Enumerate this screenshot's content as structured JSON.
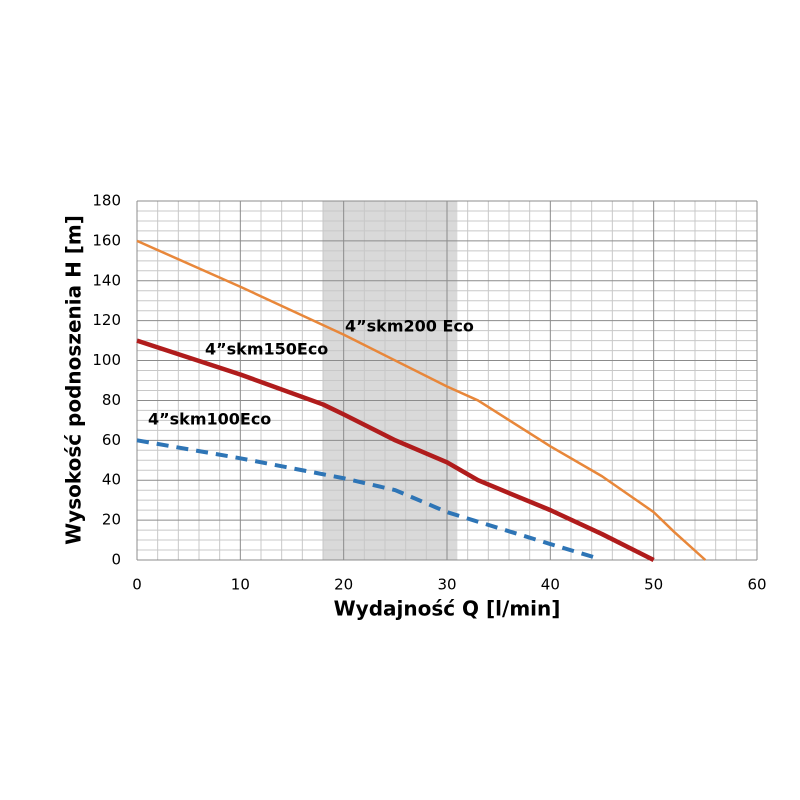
{
  "chart_data": {
    "type": "line",
    "xlabel": "Wydajność Q [l/min]",
    "ylabel": "Wysokość podnoszenia H [m]",
    "xlim": [
      0,
      60
    ],
    "xticks": [
      0,
      10,
      20,
      30,
      40,
      50,
      60
    ],
    "ylim": [
      0,
      180
    ],
    "yticks": [
      0,
      20,
      40,
      60,
      80,
      100,
      120,
      140,
      160,
      180
    ],
    "grid": true,
    "shaded_range": [
      18,
      31
    ],
    "series": [
      {
        "name": "4”skm200 Eco",
        "color": "#e8873a",
        "dashed": false,
        "x": [
          0,
          10,
          20,
          30,
          33,
          40,
          45,
          50,
          52,
          55
        ],
        "values": [
          160,
          137,
          113,
          87,
          80,
          57,
          42,
          24,
          14,
          0
        ]
      },
      {
        "name": "4”skm150Eco",
        "color": "#b01c1c",
        "dashed": false,
        "x": [
          0,
          10,
          18,
          20,
          25,
          30,
          33,
          40,
          45,
          50
        ],
        "values": [
          110,
          93,
          78,
          73,
          60,
          49,
          40,
          25,
          13,
          0
        ]
      },
      {
        "name": "4”skm100Eco",
        "color": "#2e75b6",
        "dashed": true,
        "x": [
          0,
          10,
          18,
          20,
          25,
          30,
          35,
          40,
          44.5
        ],
        "values": [
          60,
          51,
          43,
          41,
          35,
          24,
          16,
          8,
          1
        ]
      }
    ]
  }
}
